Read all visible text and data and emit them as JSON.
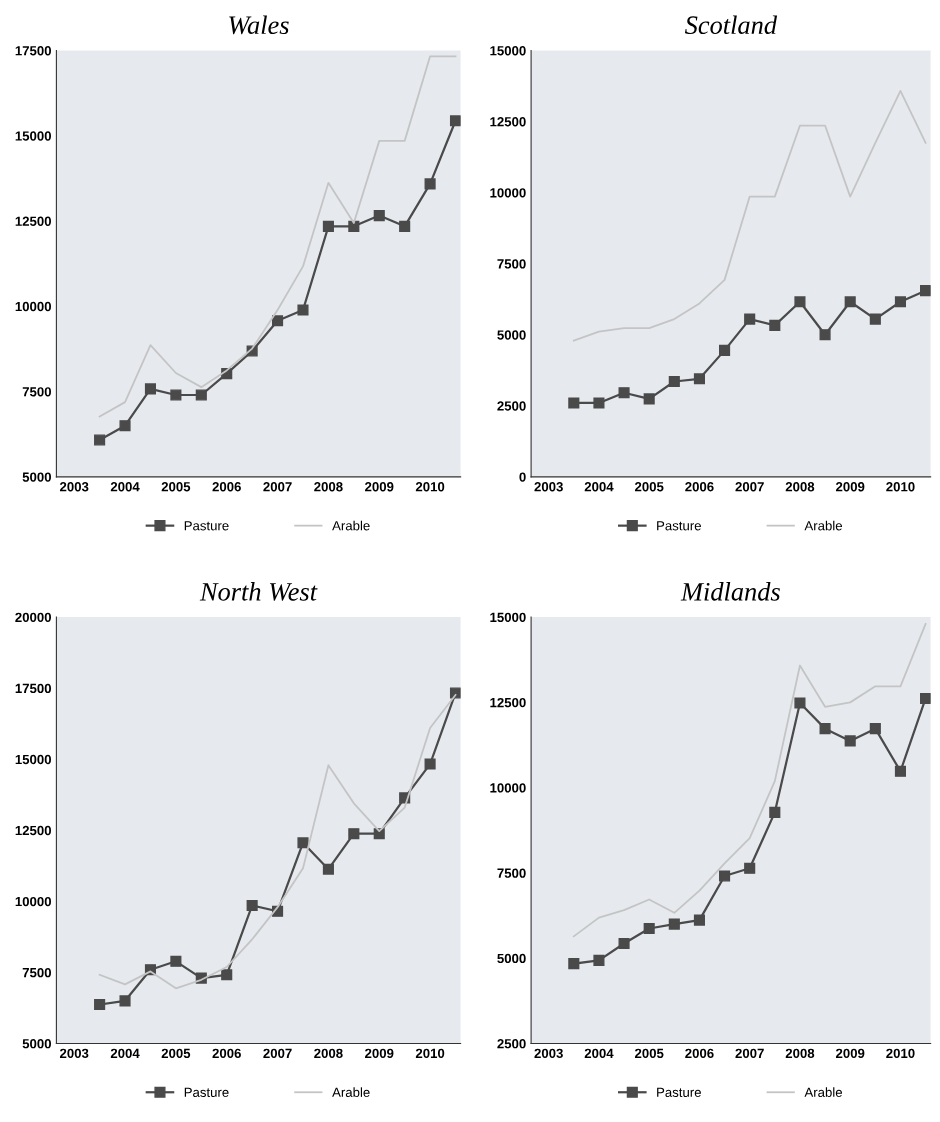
{
  "chart_data": [
    {
      "type": "line",
      "title": "Wales",
      "x": [
        2003.5,
        2004,
        2004.5,
        2005,
        2005.5,
        2006,
        2006.5,
        2007,
        2007.5,
        2008,
        2008.5,
        2009,
        2009.5,
        2010,
        2010.5
      ],
      "xlim": [
        2002.65,
        2010.6
      ],
      "xticks": [
        2003,
        2004,
        2005,
        2006,
        2007,
        2008,
        2009,
        2010
      ],
      "ylim": [
        5000,
        17500
      ],
      "yticks": [
        5000,
        7500,
        10000,
        12500,
        15000,
        17500
      ],
      "grid": false,
      "legend": "bottom",
      "series": [
        {
          "name": "Pasture",
          "color": "#4a4a4a",
          "marker": "square",
          "values": [
            6080,
            6500,
            7580,
            7400,
            7400,
            8025,
            8690,
            9575,
            9890,
            12345,
            12345,
            12660,
            12345,
            13590,
            15440
          ]
        },
        {
          "name": "Arable",
          "color": "#c4c4c4",
          "marker": "none",
          "values": [
            6770,
            7190,
            8860,
            8045,
            7630,
            8120,
            8760,
            9890,
            11170,
            13620,
            12440,
            14850,
            14850,
            17330,
            17330
          ]
        }
      ]
    },
    {
      "type": "line",
      "title": "Scotland",
      "x": [
        2003.5,
        2004,
        2004.5,
        2005,
        2005.5,
        2006,
        2006.5,
        2007,
        2007.5,
        2008,
        2008.5,
        2009,
        2009.5,
        2010,
        2010.5
      ],
      "xlim": [
        2002.65,
        2010.6
      ],
      "xticks": [
        2003,
        2004,
        2005,
        2006,
        2007,
        2008,
        2009,
        2010
      ],
      "ylim": [
        0,
        15000
      ],
      "yticks": [
        0,
        2500,
        5000,
        7500,
        10000,
        12500,
        15000
      ],
      "grid": false,
      "legend": "bottom",
      "series": [
        {
          "name": "Pasture",
          "color": "#4a4a4a",
          "marker": "square",
          "values": [
            2600,
            2600,
            2960,
            2745,
            3355,
            3450,
            4450,
            5550,
            5330,
            6160,
            5000,
            6160,
            5550,
            6160,
            6550
          ]
        },
        {
          "name": "Arable",
          "color": "#c4c4c4",
          "marker": "none",
          "values": [
            4795,
            5110,
            5235,
            5235,
            5550,
            6100,
            6930,
            9860,
            9860,
            12360,
            12360,
            9860,
            11750,
            13580,
            11750
          ]
        }
      ]
    },
    {
      "type": "line",
      "title": "North West",
      "x": [
        2003.5,
        2004,
        2004.5,
        2005,
        2005.5,
        2006,
        2006.5,
        2007,
        2007.5,
        2008,
        2008.5,
        2009,
        2009.5,
        2010,
        2010.5
      ],
      "xlim": [
        2002.65,
        2010.6
      ],
      "xticks": [
        2003,
        2004,
        2005,
        2006,
        2007,
        2008,
        2009,
        2010
      ],
      "ylim": [
        5000,
        20000
      ],
      "yticks": [
        5000,
        7500,
        10000,
        12500,
        15000,
        17500,
        20000
      ],
      "grid": false,
      "legend": "bottom",
      "series": [
        {
          "name": "Pasture",
          "color": "#4a4a4a",
          "marker": "square",
          "values": [
            6370,
            6500,
            7595,
            7890,
            7300,
            7415,
            9855,
            9650,
            12060,
            11130,
            12380,
            12380,
            13640,
            14830,
            17330
          ]
        },
        {
          "name": "Arable",
          "color": "#c4c4c4",
          "marker": "none",
          "values": [
            7415,
            7080,
            7535,
            6940,
            7240,
            7690,
            8665,
            9795,
            11160,
            14790,
            13450,
            12470,
            13300,
            16100,
            17260
          ]
        }
      ]
    },
    {
      "type": "line",
      "title": "Midlands",
      "x": [
        2003.5,
        2004,
        2004.5,
        2005,
        2005.5,
        2006,
        2006.5,
        2007,
        2007.5,
        2008,
        2008.5,
        2009,
        2009.5,
        2010,
        2010.5
      ],
      "xlim": [
        2002.65,
        2010.6
      ],
      "xticks": [
        2003,
        2004,
        2005,
        2006,
        2007,
        2008,
        2009,
        2010
      ],
      "ylim": [
        2500,
        15000
      ],
      "yticks": [
        2500,
        5000,
        7500,
        10000,
        12500,
        15000
      ],
      "grid": false,
      "legend": "bottom",
      "series": [
        {
          "name": "Pasture",
          "color": "#4a4a4a",
          "marker": "square",
          "values": [
            4840,
            4935,
            5430,
            5870,
            6000,
            6115,
            7410,
            7635,
            9275,
            12480,
            11730,
            11370,
            11730,
            10480,
            12615
          ]
        },
        {
          "name": "Arable",
          "color": "#c4c4c4",
          "marker": "none",
          "values": [
            5640,
            6190,
            6410,
            6720,
            6330,
            6980,
            7780,
            8520,
            10190,
            13580,
            12370,
            12500,
            12970,
            12970,
            14800
          ]
        }
      ]
    }
  ]
}
